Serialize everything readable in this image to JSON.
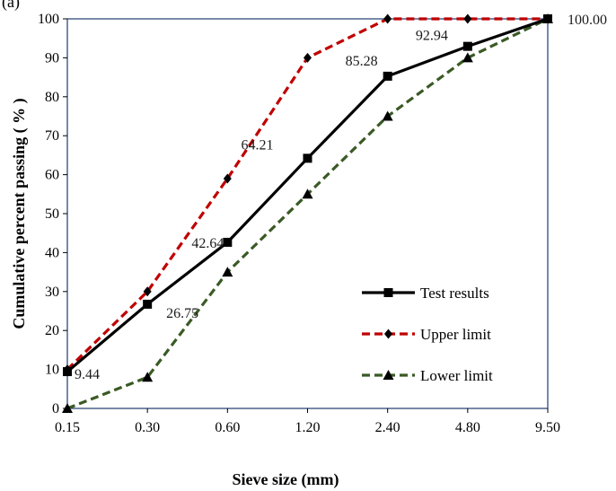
{
  "chart_data": {
    "type": "line",
    "panel_label": "(a)",
    "title": "",
    "xlabel": "Sieve size (mm)",
    "ylabel": "Cumulative percent passing ( % )",
    "categories": [
      "0.15",
      "0.30",
      "0.60",
      "1.20",
      "2.40",
      "4.80",
      "9.50"
    ],
    "ylim": [
      0,
      100
    ],
    "yticks": [
      "0",
      "10",
      "20",
      "30",
      "40",
      "50",
      "60",
      "70",
      "80",
      "90",
      "100"
    ],
    "grid": false,
    "legend_position": "bottom-right",
    "series": [
      {
        "name": "Test results",
        "values": [
          9.44,
          26.75,
          42.64,
          64.21,
          85.28,
          92.94,
          100.0
        ],
        "data_labels": [
          "9.44",
          "26.75",
          "42.64",
          "64.21",
          "85.28",
          "92.94",
          "100.00"
        ],
        "color": "#000000",
        "dash": "solid",
        "marker": "square"
      },
      {
        "name": "Upper limit",
        "values": [
          10,
          30,
          59,
          90,
          100,
          100,
          100
        ],
        "color": "#c00000",
        "dash": "dashed",
        "marker": "diamond"
      },
      {
        "name": "Lower limit",
        "values": [
          0,
          8,
          35,
          55,
          75,
          90,
          100
        ],
        "color": "#3a5a25",
        "dash": "dashed",
        "marker": "triangle"
      }
    ]
  }
}
